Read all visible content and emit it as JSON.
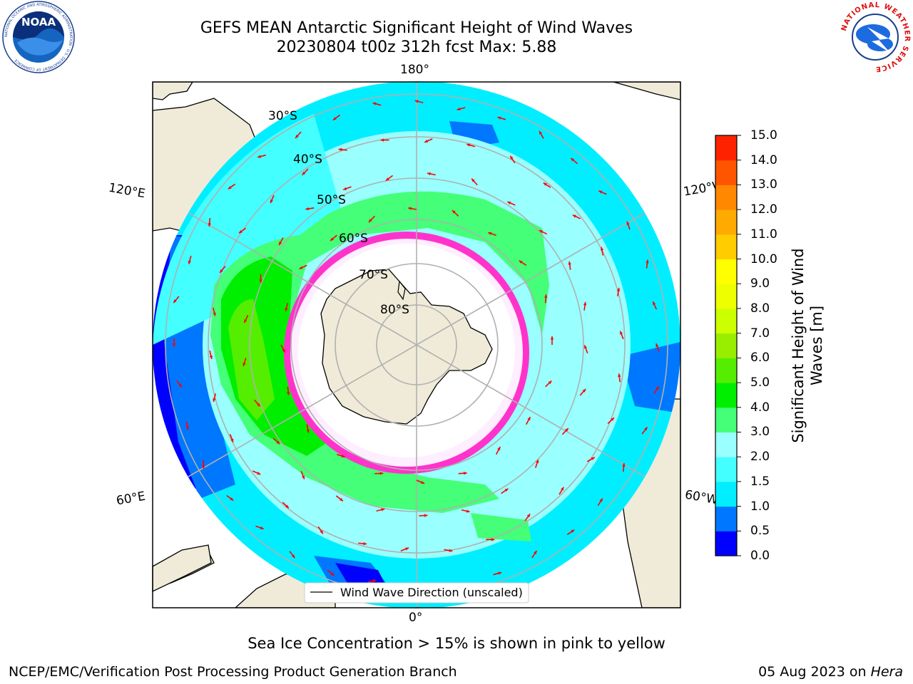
{
  "header": {
    "title_line1": "GEFS MEAN Antarctic Significant Height of Wind Waves",
    "title_line2": "20230804 t00z 312h fcst   Max: 5.88"
  },
  "logos": {
    "left": {
      "text": "NOAA",
      "ring": "NATIONAL OCEANIC AND ATMOSPHERIC ADMINISTRATION · U.S. DEPARTMENT OF COMMERCE"
    },
    "right": {
      "ring": "NATIONAL WEATHER SERVICE"
    }
  },
  "map": {
    "lon_labels": {
      "top": "180°",
      "bottom": "0°",
      "upper_left": "120°E",
      "lower_left": "60°E",
      "upper_right": "120°W",
      "lower_right": "60°W"
    },
    "lat_labels": [
      "30°S",
      "40°S",
      "50°S",
      "60°S",
      "70°S",
      "80°S"
    ],
    "legend_label": "Wind Wave Direction (unscaled)",
    "colors": {
      "land": "#efebd8",
      "ocean_low": "#00ffff",
      "sea_ice": "#ff33cc",
      "arrow": "#ff0000"
    }
  },
  "colorbar": {
    "label_line1": "Significant Height of Wind",
    "label_line2": "Waves [m]",
    "levels": [
      "0.0",
      "0.5",
      "1.0",
      "1.5",
      "2.0",
      "3.0",
      "4.0",
      "5.0",
      "6.0",
      "7.0",
      "8.0",
      "9.0",
      "10.0",
      "11.0",
      "12.0",
      "13.0",
      "14.0",
      "15.0"
    ],
    "colors": [
      "#0000ff",
      "#0077ff",
      "#00eeff",
      "#44ffff",
      "#99ffff",
      "#44ff77",
      "#00ee00",
      "#55ee00",
      "#99ee00",
      "#ccff00",
      "#eeff00",
      "#ffff00",
      "#ffcc00",
      "#ffaa00",
      "#ff8800",
      "#ff5500",
      "#ff2200"
    ]
  },
  "footer": {
    "note": "Sea Ice Concentration > 15% is shown in pink to yellow",
    "left": "NCEP/EMC/Verification Post Processing Product Generation Branch",
    "right_date": "05 Aug 2023 on",
    "right_machine": "Hera"
  }
}
